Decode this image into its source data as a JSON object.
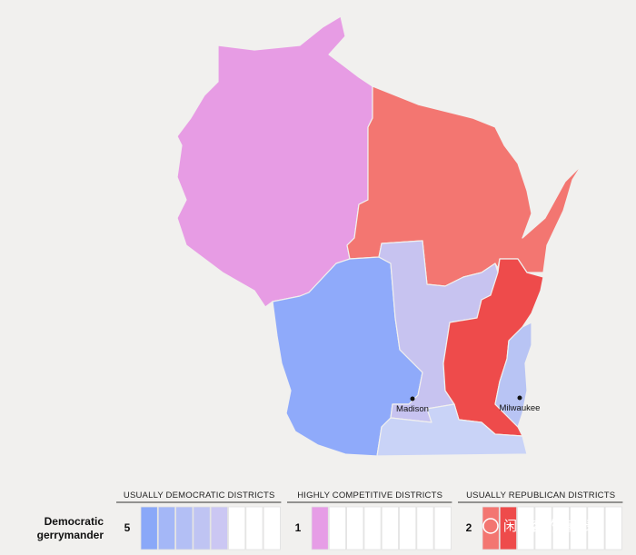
{
  "map": {
    "cities": [
      {
        "label": "Madison"
      },
      {
        "label": "Milwaukee"
      }
    ]
  },
  "legend": {
    "title": [
      "Democratic",
      "gerrymander"
    ],
    "groups": [
      {
        "heading": "USUALLY DEMOCRATIC DISTRICTS",
        "count": 5,
        "colors": [
          "#8aa8f8",
          "#a4b7f7",
          "#b3bff5",
          "#bfc4f3",
          "#cbc7f3"
        ]
      },
      {
        "heading": "HIGHLY COMPETITIVE DISTRICTS",
        "count": 1,
        "colors": [
          "#e69de6"
        ]
      },
      {
        "heading": "USUALLY REPUBLICAN DISTRICTS",
        "count": 2,
        "colors": [
          "#f37671",
          "#ee4b4b"
        ]
      }
    ]
  },
  "watermark": "闲吟客的随想录"
}
